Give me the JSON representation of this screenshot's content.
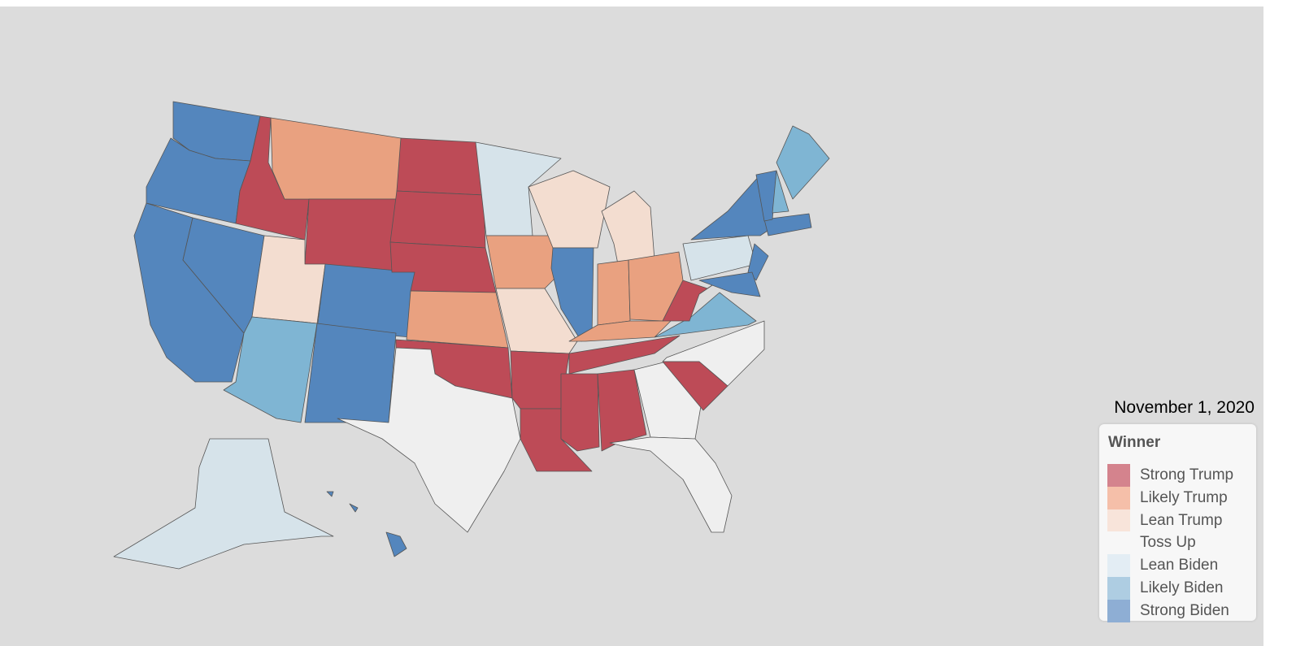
{
  "date": "November 1, 2020",
  "legend": {
    "title": "Winner",
    "items": [
      {
        "label": "Strong Trump",
        "color": "#d4838d"
      },
      {
        "label": "Likely Trump",
        "color": "#f5bfa9"
      },
      {
        "label": "Lean Trump",
        "color": "#f8e4da"
      },
      {
        "label": "Toss Up",
        "color": "#f7f7f7"
      },
      {
        "label": "Lean Biden",
        "color": "#e3edf4"
      },
      {
        "label": "Likely Biden",
        "color": "#aecde2"
      },
      {
        "label": "Strong Biden",
        "color": "#8eaed4"
      }
    ]
  }
}
